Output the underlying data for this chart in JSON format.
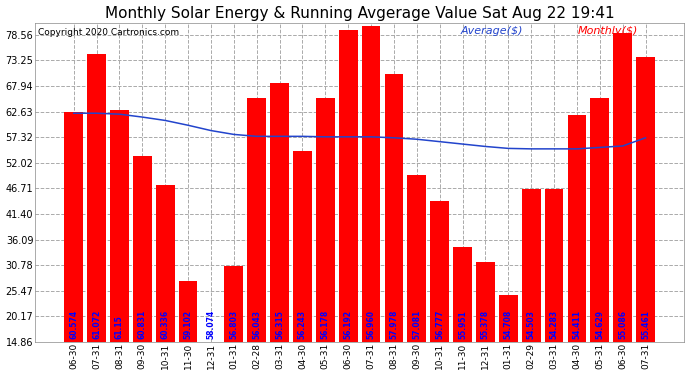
{
  "title": "Monthly Solar Energy & Running Avgerage Value Sat Aug 22 19:41",
  "copyright": "Copyright 2020 Cartronics.com",
  "legend_avg": "Average($)",
  "legend_monthly": "Monthly($)",
  "categories": [
    "06-30",
    "07-31",
    "08-31",
    "09-30",
    "10-31",
    "11-30",
    "12-31",
    "01-31",
    "02-28",
    "03-31",
    "04-30",
    "05-31",
    "06-30",
    "07-31",
    "08-31",
    "09-30",
    "10-31",
    "11-30",
    "12-31",
    "01-31",
    "02-29",
    "03-31",
    "04-30",
    "05-31",
    "06-30",
    "07-31"
  ],
  "monthly_values": [
    62.5,
    74.5,
    63.0,
    53.5,
    47.5,
    27.5,
    14.0,
    30.5,
    65.5,
    68.5,
    54.5,
    65.5,
    79.5,
    80.5,
    70.5,
    49.5,
    44.0,
    34.5,
    31.5,
    24.5,
    46.5,
    46.5,
    62.0,
    65.5,
    79.0,
    74.0
  ],
  "avg_values": [
    62.3,
    62.3,
    62.1,
    61.5,
    60.8,
    59.8,
    58.7,
    57.9,
    57.5,
    57.5,
    57.5,
    57.4,
    57.4,
    57.4,
    57.2,
    56.9,
    56.4,
    55.9,
    55.4,
    55.0,
    54.9,
    54.9,
    54.9,
    55.2,
    55.5,
    57.2
  ],
  "bar_labels": [
    "60.574",
    "61.072",
    "61.15",
    "60.831",
    "60.336",
    "59.102",
    "58.074",
    "56.803",
    "56.043",
    "56.315",
    "56.243",
    "56.178",
    "56.192",
    "56.960",
    "57.978",
    "57.081",
    "56.777",
    "55.951",
    "55.378",
    "54.708",
    "54.503",
    "54.283",
    "54.411",
    "54.629",
    "55.086",
    "55.461"
  ],
  "bar_label_is_blue": [
    true,
    true,
    true,
    true,
    true,
    true,
    true,
    true,
    true,
    true,
    true,
    true,
    true,
    true,
    true,
    true,
    true,
    true,
    true,
    true,
    true,
    true,
    true,
    true,
    true,
    true
  ],
  "bar_color": "#ff0000",
  "avg_color": "#2244cc",
  "monthly_color": "#ff0000",
  "bg_color": "#ffffff",
  "grid_color": "#aaaaaa",
  "yticks": [
    14.86,
    20.17,
    25.47,
    30.78,
    36.09,
    41.4,
    46.71,
    52.02,
    57.32,
    62.63,
    67.94,
    73.25,
    78.56
  ],
  "ylim_min": 14.86,
  "ylim_max": 81.0,
  "title_fontsize": 11,
  "bar_label_fontsize": 5.5,
  "tick_fontsize": 7,
  "legend_fontsize": 8,
  "copyright_fontsize": 6.5
}
